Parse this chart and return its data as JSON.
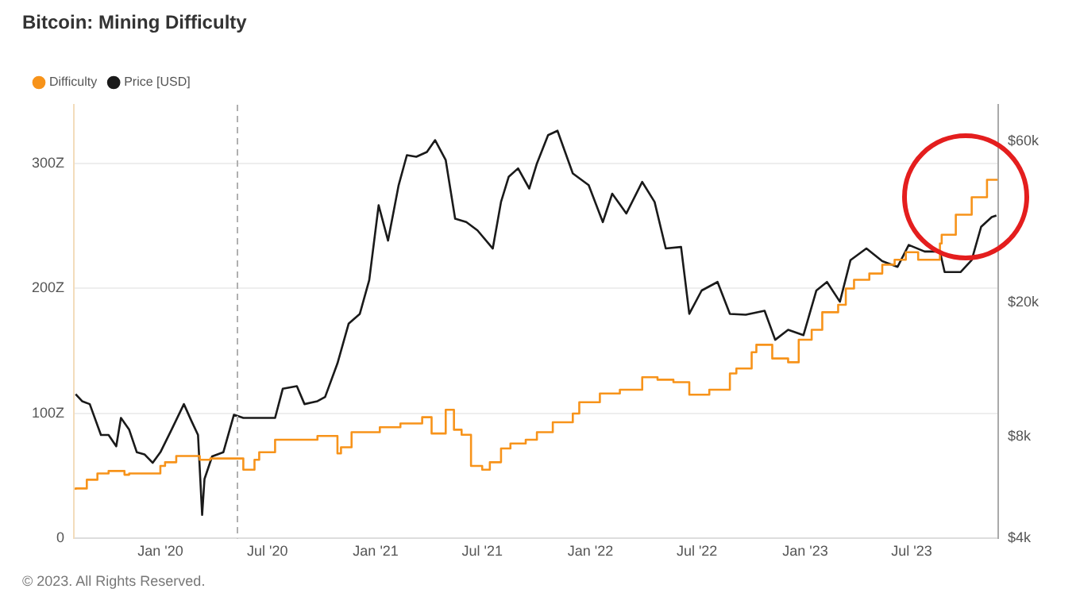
{
  "chart_data": {
    "type": "line",
    "title": "Bitcoin: Mining Difficulty",
    "annotations": [
      "© 2023. All Rights Reserved."
    ],
    "xlim": [
      "2019-08-07",
      "2023-11-25"
    ],
    "xticks": [
      {
        "value": "2020-01-01",
        "label": "Jan '20"
      },
      {
        "value": "2020-07-01",
        "label": "Jul '20"
      },
      {
        "value": "2021-01-01",
        "label": "Jan '21"
      },
      {
        "value": "2021-07-01",
        "label": "Jul '21"
      },
      {
        "value": "2022-01-01",
        "label": "Jan '22"
      },
      {
        "value": "2022-07-01",
        "label": "Jul '22"
      },
      {
        "value": "2023-01-01",
        "label": "Jan '23"
      },
      {
        "value": "2023-07-01",
        "label": "Jul '23"
      }
    ],
    "ylim": [
      0,
      347
    ],
    "yticks": [
      0,
      {
        "value": 100,
        "label": "100Z"
      },
      {
        "value": 200,
        "label": "200Z"
      },
      {
        "value": 300,
        "label": "300Z"
      }
    ],
    "y2lim": [
      4000,
      77000
    ],
    "y2ticks": [
      {
        "value": 4000,
        "label": "$4k"
      },
      {
        "value": 8000,
        "label": "$8k"
      },
      {
        "value": 20000,
        "label": "$20k"
      },
      {
        "value": 60000,
        "label": "$60k"
      }
    ],
    "log": "y2",
    "grid": "y",
    "legend": "top left",
    "marker": "none",
    "ref_lines": [
      {
        "axis": "x",
        "value": "2020-05-11",
        "label": null,
        "color": "#b0b0b0",
        "line_style": "dashed"
      }
    ],
    "series": [
      {
        "name": "Difficulty",
        "type": "step",
        "color": "#f7931a",
        "x": [
          "2019-08-10",
          "2019-08-29",
          "2019-09-16",
          "2019-10-05",
          "2019-11-01",
          "2019-11-09",
          "2020-01-01",
          "2020-01-09",
          "2020-01-28",
          "2020-03-08",
          "2020-03-26",
          "2020-05-21",
          "2020-06-09",
          "2020-06-17",
          "2020-07-14",
          "2020-09-24",
          "2020-10-28",
          "2020-11-03",
          "2020-11-21",
          "2021-01-08",
          "2021-02-12",
          "2021-03-21",
          "2021-04-06",
          "2021-04-30",
          "2021-05-14",
          "2021-05-27",
          "2021-06-12",
          "2021-07-01",
          "2021-07-14",
          "2021-08-02",
          "2021-08-18",
          "2021-09-13",
          "2021-10-02",
          "2021-10-29",
          "2021-12-02",
          "2021-12-13",
          "2022-01-17",
          "2022-02-20",
          "2022-03-30",
          "2022-04-25",
          "2022-05-22",
          "2022-06-18",
          "2022-07-22",
          "2022-08-26",
          "2022-09-06",
          "2022-10-02",
          "2022-10-10",
          "2022-11-06",
          "2022-12-03",
          "2022-12-21",
          "2023-01-12",
          "2023-01-30",
          "2023-02-26",
          "2023-03-11",
          "2023-03-25",
          "2023-04-20",
          "2023-05-12",
          "2023-06-02",
          "2023-06-21",
          "2023-07-12",
          "2023-08-18",
          "2023-08-21",
          "2023-09-14",
          "2023-10-11",
          "2023-11-06",
          "2023-11-24"
        ],
        "values": [
          39,
          40,
          47,
          52,
          54,
          51,
          52,
          58,
          61,
          66,
          63,
          64,
          55,
          63,
          69,
          79,
          82,
          68,
          73,
          85,
          89,
          92,
          97,
          84,
          103,
          87,
          83,
          58,
          55,
          61,
          72,
          76,
          79,
          85,
          93,
          100,
          109,
          116,
          119,
          129,
          127,
          125,
          115,
          119,
          132,
          136,
          149,
          155,
          144,
          141,
          159,
          167,
          181,
          187,
          200,
          207,
          212,
          219,
          223,
          229,
          223,
          236,
          243,
          259,
          273,
          287
        ]
      },
      {
        "name": "Price [USD]",
        "type": "line",
        "axis": "y2",
        "color": "#1a1a1a",
        "x": [
          "2019-08-10",
          "2019-08-21",
          "2019-09-03",
          "2019-09-22",
          "2019-10-05",
          "2019-10-18",
          "2019-10-26",
          "2019-11-09",
          "2019-11-22",
          "2019-12-05",
          "2019-12-19",
          "2020-01-01",
          "2020-01-20",
          "2020-02-10",
          "2020-02-23",
          "2020-03-05",
          "2020-03-12",
          "2020-03-16",
          "2020-03-29",
          "2020-04-17",
          "2020-05-05",
          "2020-05-21",
          "2020-06-09",
          "2020-07-14",
          "2020-07-27",
          "2020-08-20",
          "2020-09-02",
          "2020-09-24",
          "2020-10-07",
          "2020-10-28",
          "2020-11-16",
          "2020-12-05",
          "2020-12-21",
          "2021-01-06",
          "2021-01-22",
          "2021-02-09",
          "2021-02-23",
          "2021-03-11",
          "2021-03-29",
          "2021-04-12",
          "2021-04-30",
          "2021-05-16",
          "2021-06-04",
          "2021-06-23",
          "2021-07-19",
          "2021-08-02",
          "2021-08-15",
          "2021-08-31",
          "2021-09-19",
          "2021-10-02",
          "2021-10-21",
          "2021-11-06",
          "2021-12-02",
          "2021-12-29",
          "2022-01-22",
          "2022-02-07",
          "2022-03-03",
          "2022-03-30",
          "2022-04-20",
          "2022-05-09",
          "2022-06-04",
          "2022-06-18",
          "2022-07-09",
          "2022-08-05",
          "2022-08-26",
          "2022-09-22",
          "2022-10-24",
          "2022-11-11",
          "2022-12-03",
          "2022-12-29",
          "2023-01-20",
          "2023-02-07",
          "2023-03-01",
          "2023-03-19",
          "2023-04-15",
          "2023-05-12",
          "2023-06-07",
          "2023-06-26",
          "2023-07-23",
          "2023-08-18",
          "2023-08-26",
          "2023-09-22",
          "2023-10-11",
          "2023-10-27",
          "2023-11-14",
          "2023-11-22"
        ],
        "values": [
          10700,
          10200,
          10000,
          8100,
          8100,
          7500,
          9100,
          8400,
          7200,
          7100,
          6700,
          7200,
          8400,
          10000,
          8900,
          8100,
          4700,
          6000,
          7000,
          7200,
          9300,
          9100,
          9100,
          9100,
          11100,
          11300,
          10000,
          10200,
          10500,
          13200,
          17300,
          18500,
          23300,
          38800,
          30500,
          44500,
          54600,
          54000,
          55800,
          60500,
          52800,
          35400,
          34600,
          32700,
          28900,
          39700,
          47100,
          49900,
          43500,
          51600,
          62600,
          64500,
          48200,
          44500,
          34600,
          42000,
          36700,
          45500,
          39700,
          28900,
          29200,
          18500,
          21700,
          23000,
          18500,
          18400,
          18900,
          15500,
          16600,
          16000,
          21700,
          23000,
          20100,
          26700,
          28900,
          26500,
          25500,
          29600,
          28300,
          28300,
          24600,
          24600,
          26700,
          33500,
          35800,
          36200
        ]
      }
    ]
  }
}
